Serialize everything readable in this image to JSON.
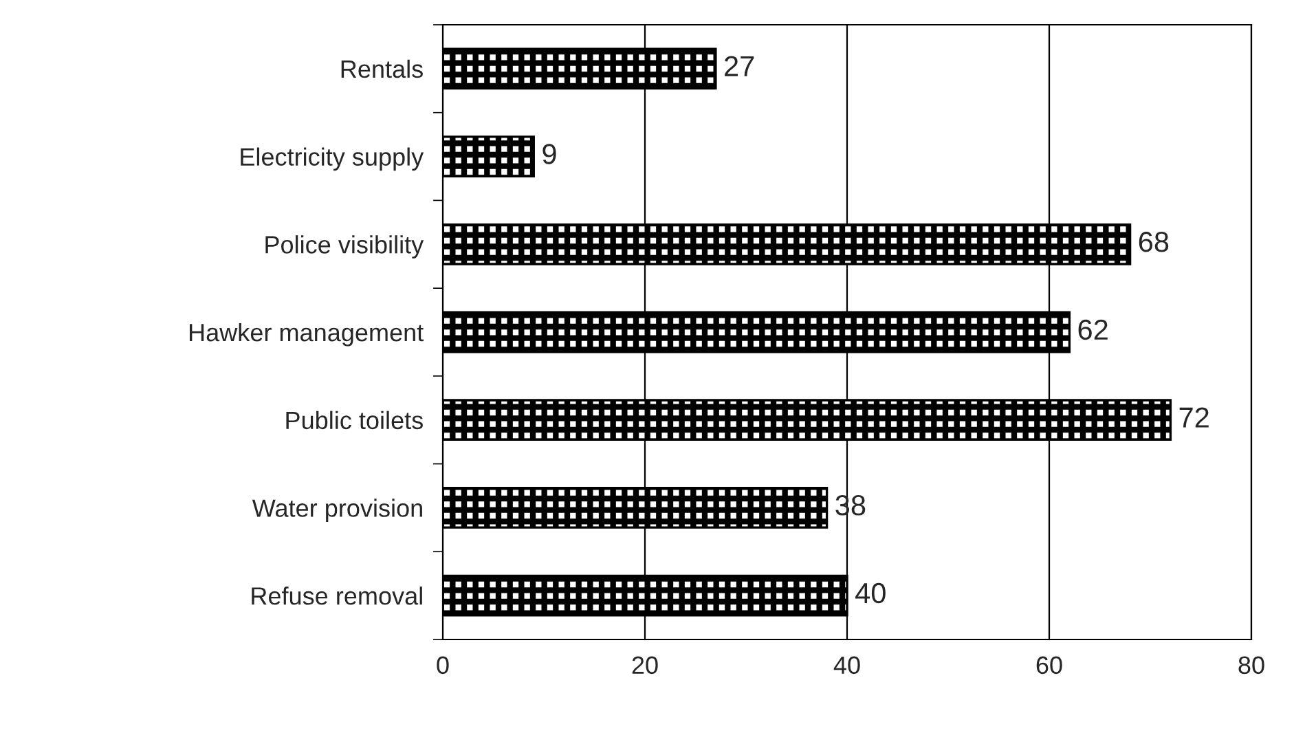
{
  "chart_data": {
    "type": "bar",
    "orientation": "horizontal",
    "categories": [
      "Rentals",
      "Electricity supply",
      "Police visibility",
      "Hawker management",
      "Public toilets",
      "Water provision",
      "Refuse removal"
    ],
    "values": [
      27,
      9,
      68,
      62,
      72,
      38,
      40
    ],
    "color": "#000000",
    "xlim": [
      0,
      80
    ],
    "xticks": [
      0,
      20,
      40,
      60,
      80
    ],
    "grid": "x",
    "data_labels": true
  }
}
